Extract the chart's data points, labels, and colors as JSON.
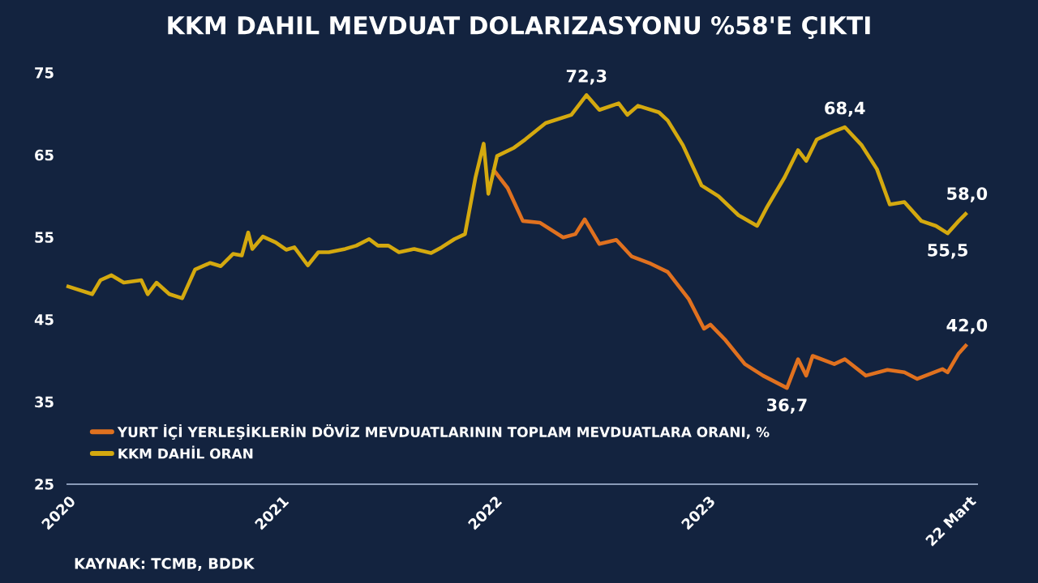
{
  "chart_data": {
    "type": "line",
    "title": "KKM DAHIL MEVDUAT DOLARIZASYONU %58'E ÇIKTI",
    "xlim": [
      "2020-01-01",
      "2024-04-10"
    ],
    "xticks": [
      "2020",
      "2021",
      "2022",
      "2023",
      {
        "value": "2024-03-22",
        "label": "22 Mart"
      }
    ],
    "ylim": [
      25,
      75
    ],
    "yticks": [
      25,
      35,
      45,
      55,
      65,
      75
    ],
    "legend": "bottom left",
    "series": [
      {
        "name": "YURT İÇİ YERLEŞİKLERİN DÖVİZ MEVDUATLARININ TOPLAM MEVDUATLARA ORANI, %",
        "color": "#e0711f",
        "x": [
          "2022-01-01",
          "2022-01-26",
          "2022-02-21",
          "2022-03-22",
          "2022-05-01",
          "2022-05-22",
          "2022-06-07",
          "2022-07-02",
          "2022-07-31",
          "2022-08-26",
          "2022-09-28",
          "2022-10-27",
          "2022-12-02",
          "2022-12-28",
          "2023-01-08",
          "2023-02-03",
          "2023-03-08",
          "2023-04-08",
          "2023-05-19",
          "2023-06-07",
          "2023-06-21",
          "2023-07-02",
          "2023-08-08",
          "2023-08-26",
          "2023-10-01",
          "2023-11-07",
          "2023-12-06",
          "2023-12-28",
          "2024-02-09",
          "2024-02-18",
          "2024-03-08",
          "2024-03-22"
        ],
        "values": [
          63.3,
          61.0,
          57.0,
          56.8,
          55.0,
          55.4,
          57.2,
          54.2,
          54.7,
          52.7,
          51.8,
          50.8,
          47.5,
          43.9,
          44.4,
          42.5,
          39.6,
          38.2,
          36.7,
          40.2,
          38.2,
          40.6,
          39.6,
          40.2,
          38.2,
          38.9,
          38.6,
          37.8,
          39.0,
          38.6,
          40.9,
          42.0
        ]
      },
      {
        "name": "KKM DAHİL ORAN",
        "color": "#d4a90f",
        "x": [
          "2020-01-01",
          "2020-02-14",
          "2020-02-28",
          "2020-03-18",
          "2020-04-08",
          "2020-05-08",
          "2020-05-19",
          "2020-06-03",
          "2020-06-25",
          "2020-07-17",
          "2020-08-08",
          "2020-09-03",
          "2020-09-21",
          "2020-10-12",
          "2020-10-27",
          "2020-11-07",
          "2020-11-14",
          "2020-12-02",
          "2020-12-24",
          "2021-01-12",
          "2021-01-26",
          "2021-02-18",
          "2021-03-08",
          "2021-03-26",
          "2021-04-23",
          "2021-05-12",
          "2021-06-03",
          "2021-06-18",
          "2021-07-06",
          "2021-07-24",
          "2021-08-19",
          "2021-09-17",
          "2021-10-05",
          "2021-10-27",
          "2021-11-14",
          "2021-12-02",
          "2021-12-16",
          "2021-12-24",
          "2022-01-08",
          "2022-02-06",
          "2022-02-25",
          "2022-04-01",
          "2022-05-15",
          "2022-06-10",
          "2022-07-02",
          "2022-08-04",
          "2022-08-19",
          "2022-09-06",
          "2022-10-12",
          "2022-10-27",
          "2022-11-22",
          "2022-12-24",
          "2023-01-22",
          "2023-02-25",
          "2023-03-29",
          "2023-04-15",
          "2023-05-15",
          "2023-06-07",
          "2023-06-21",
          "2023-07-09",
          "2023-08-08",
          "2023-08-26",
          "2023-09-24",
          "2023-10-20",
          "2023-11-11",
          "2023-12-06",
          "2024-01-04",
          "2024-01-29",
          "2024-02-18",
          "2024-03-08",
          "2024-03-22"
        ],
        "values": [
          49.1,
          48.1,
          49.8,
          50.4,
          49.5,
          49.8,
          48.1,
          49.5,
          48.1,
          47.6,
          51.1,
          51.9,
          51.5,
          53.0,
          52.8,
          55.6,
          53.6,
          55.1,
          54.4,
          53.5,
          53.8,
          51.6,
          53.2,
          53.2,
          53.6,
          54.0,
          54.8,
          54.0,
          54.0,
          53.2,
          53.6,
          53.1,
          53.8,
          54.8,
          55.4,
          62.3,
          66.4,
          60.3,
          64.9,
          65.9,
          66.9,
          68.9,
          69.9,
          72.3,
          70.5,
          71.3,
          69.9,
          71.0,
          70.2,
          69.2,
          66.2,
          61.3,
          60.0,
          57.7,
          56.4,
          58.7,
          62.3,
          65.6,
          64.3,
          66.9,
          67.9,
          68.4,
          66.2,
          63.3,
          59.0,
          59.3,
          57.0,
          56.4,
          55.5,
          57.0,
          58.0
        ]
      }
    ],
    "annotations": [
      {
        "text": "72,3",
        "x": "2022-06-10",
        "y": 72.3
      },
      {
        "text": "68,4",
        "x": "2023-08-26",
        "y": 68.4
      },
      {
        "text": "58,0",
        "x": "2024-03-22",
        "y": 58.0
      },
      {
        "text": "55,5",
        "x": "2024-02-18",
        "y": 55.5
      },
      {
        "text": "36,7",
        "x": "2023-05-19",
        "y": 36.7
      },
      {
        "text": "42,0",
        "x": "2024-03-22",
        "y": 42.0
      },
      "KAYNAK: TCMB, BDDK"
    ]
  }
}
